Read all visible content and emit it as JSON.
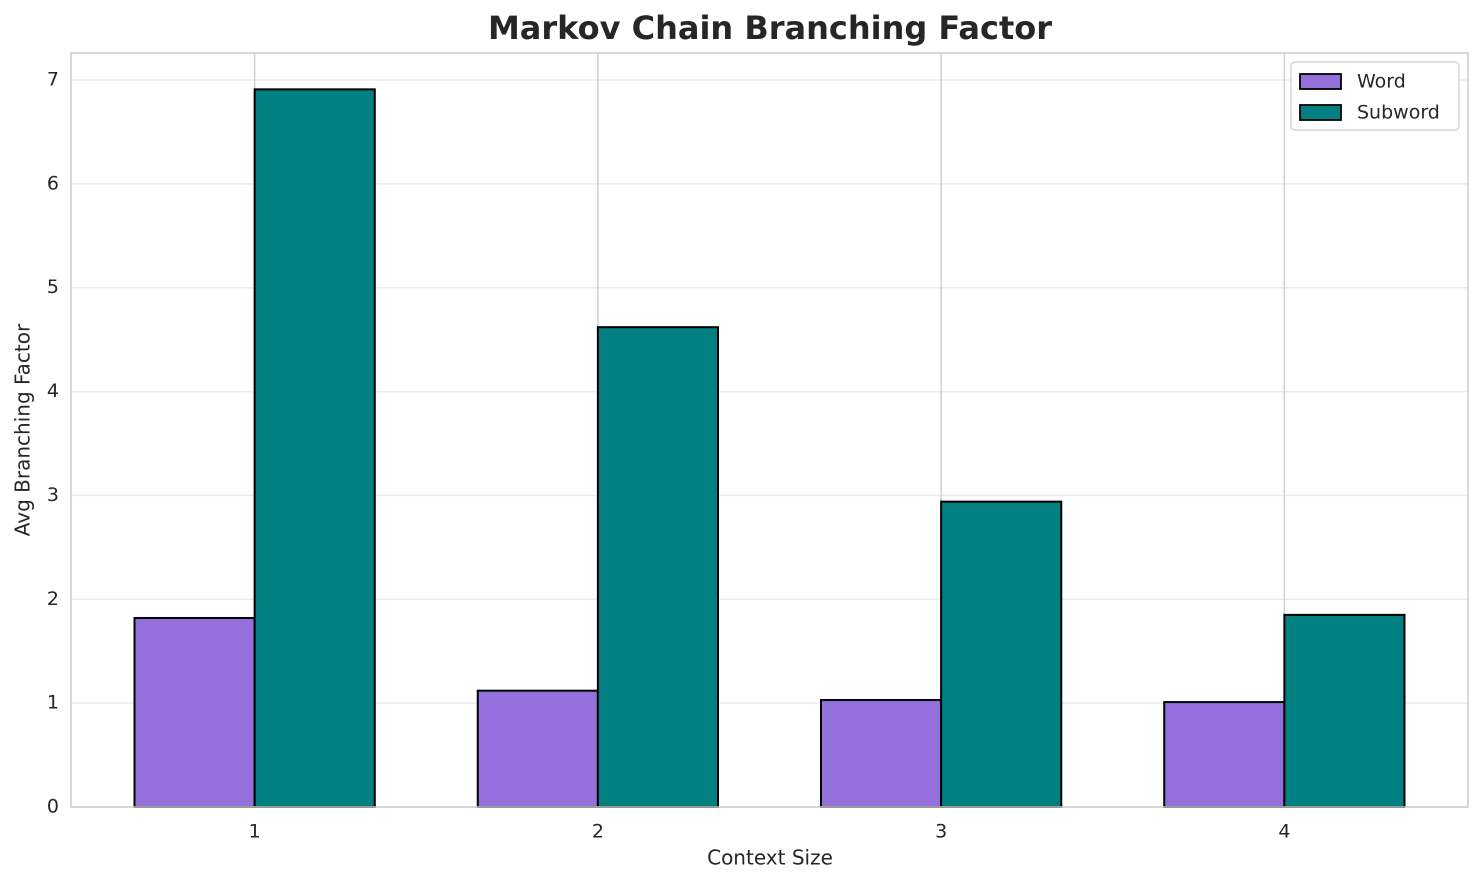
{
  "chart_data": {
    "type": "bar",
    "title": "Markov Chain Branching Factor",
    "x_label": "Context Size",
    "y_label": "Avg Branching Factor",
    "categories": [
      "1",
      "2",
      "3",
      "4"
    ],
    "series": [
      {
        "name": "Word",
        "color": "#9370db",
        "values": [
          1.82,
          1.12,
          1.03,
          1.01
        ]
      },
      {
        "name": "Subword",
        "color": "#008080",
        "values": [
          6.91,
          4.62,
          2.94,
          1.85
        ]
      }
    ],
    "ylim": [
      0,
      7.26
    ],
    "yticks": [
      0,
      1,
      2,
      3,
      4,
      5,
      6,
      7
    ],
    "grid": true,
    "legend": "upper right"
  }
}
